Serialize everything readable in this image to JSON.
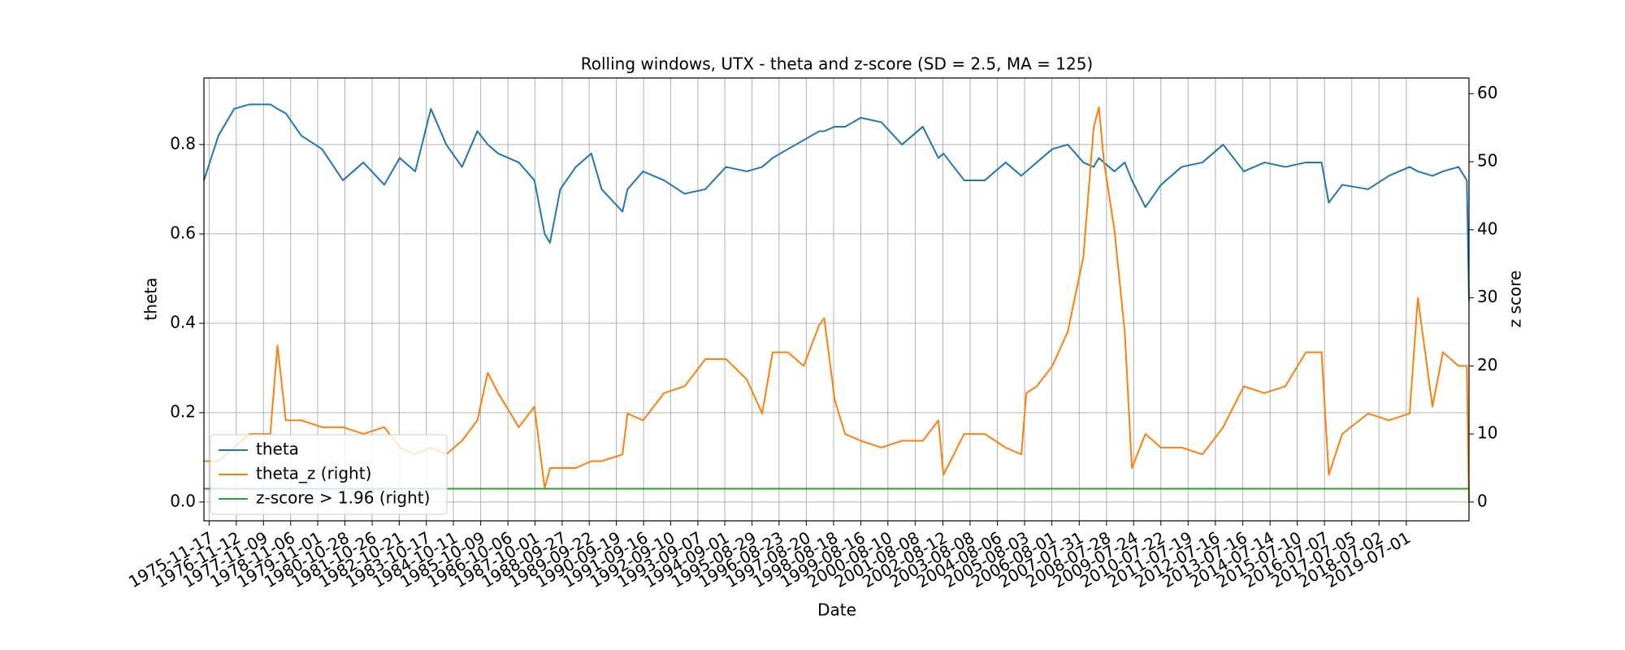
{
  "chart_data": {
    "type": "line",
    "title": "Rolling windows, UTX - theta and z-score (SD = 2.5, MA = 125)",
    "x_label": "Date",
    "y_label": "theta",
    "y2_label": "z score",
    "x": [
      "1975-09-09",
      "1976-03-20",
      "1976-10-15",
      "1977-05-08",
      "1978-02-08",
      "1978-05-15",
      "1978-09-02",
      "1979-03-28",
      "1979-12-28",
      "1980-10-01",
      "1981-07-01",
      "1982-04-05",
      "1982-10-27",
      "1983-05-22",
      "1983-12-16",
      "1984-07-08",
      "1985-02-02",
      "1985-08-26",
      "1986-01-11",
      "1986-05-29",
      "1987-02-28",
      "1987-09-24",
      "1988-02-08",
      "1988-04-18",
      "1988-09-02",
      "1989-03-28",
      "1989-10-20",
      "1990-03-07",
      "1990-12-09",
      "1991-02-14",
      "1991-09-09",
      "1992-06-13",
      "1993-03-14",
      "1993-12-16",
      "1994-09-16",
      "1995-06-21",
      "1996-01-11",
      "1996-05-29",
      "1996-12-20",
      "1997-07-16",
      "1998-02-08",
      "1998-04-16",
      "1998-09-02",
      "1999-01-19",
      "1999-08-14",
      "2000-05-15",
      "2001-02-14",
      "2001-11-17",
      "2002-06-13",
      "2002-08-19",
      "2003-05-22",
      "2004-02-20",
      "2004-11-24",
      "2005-06-21",
      "2005-08-26",
      "2006-01-11",
      "2006-08-08",
      "2007-02-28",
      "2007-09-24",
      "2008-02-08",
      "2008-04-18",
      "2008-06-24",
      "2008-11-10",
      "2009-03-28",
      "2009-07-01",
      "2009-12-28",
      "2010-07-23",
      "2011-04-23",
      "2012-01-26",
      "2012-10-27",
      "2013-07-30",
      "2014-05-01",
      "2015-02-02",
      "2015-11-03",
      "2016-05-29",
      "2016-09-02",
      "2017-02-28",
      "2018-02-08",
      "2018-11-10",
      "2019-08-14",
      "2019-12-01",
      "2020-06-13",
      "2020-10-30",
      "2021-05-26",
      "2021-09-13",
      "2021-10-12"
    ],
    "series": [
      {
        "name": "theta",
        "color": "#1f77b4",
        "values": [
          0.72,
          0.82,
          0.88,
          0.89,
          0.89,
          0.88,
          0.87,
          0.82,
          0.79,
          0.72,
          0.76,
          0.71,
          0.77,
          0.74,
          0.88,
          0.8,
          0.75,
          0.83,
          0.8,
          0.78,
          0.76,
          0.72,
          0.6,
          0.58,
          0.7,
          0.75,
          0.78,
          0.7,
          0.65,
          0.7,
          0.74,
          0.72,
          0.69,
          0.7,
          0.75,
          0.74,
          0.75,
          0.77,
          0.79,
          0.81,
          0.83,
          0.83,
          0.84,
          0.84,
          0.86,
          0.85,
          0.8,
          0.84,
          0.77,
          0.78,
          0.72,
          0.72,
          0.76,
          0.73,
          0.74,
          0.76,
          0.79,
          0.8,
          0.76,
          0.75,
          0.77,
          0.76,
          0.74,
          0.76,
          0.72,
          0.66,
          0.71,
          0.75,
          0.76,
          0.8,
          0.74,
          0.76,
          0.75,
          0.76,
          0.76,
          0.67,
          0.71,
          0.7,
          0.73,
          0.75,
          0.74,
          0.73,
          0.74,
          0.75,
          0.72,
          0.45
        ]
      },
      {
        "name": "theta_z (right)",
        "color": "#ff7f0e",
        "axis": "y2",
        "values": [
          6,
          6,
          8,
          10,
          10,
          23,
          12,
          12,
          11,
          11,
          10,
          11,
          8,
          7,
          8,
          7,
          9,
          12,
          19,
          16,
          11,
          14,
          2,
          5,
          5,
          5,
          6,
          6,
          7,
          13,
          12,
          16,
          17,
          21,
          21,
          18,
          13,
          22,
          22,
          20,
          26,
          27,
          15,
          10,
          9,
          8,
          9,
          9,
          12,
          4,
          10,
          10,
          8,
          7,
          16,
          17,
          20,
          25,
          36,
          55,
          58,
          50,
          40,
          25,
          5,
          10,
          8,
          8,
          7,
          11,
          17,
          16,
          17,
          22,
          22,
          4,
          10,
          13,
          12,
          13,
          30,
          14,
          22,
          20,
          20,
          0
        ]
      },
      {
        "name": "z-score > 1.96 (right)",
        "color": "#2ca02c",
        "axis": "y2",
        "values": [
          1.96,
          1.96,
          1.96,
          1.96,
          1.96,
          1.96,
          1.96,
          1.96,
          1.96,
          1.96,
          1.96,
          1.96,
          1.96,
          1.96,
          1.96,
          1.96,
          1.96,
          1.96,
          1.96,
          1.96,
          1.96,
          1.96,
          1.96,
          1.96,
          1.96,
          1.96,
          1.96,
          1.96,
          1.96,
          1.96,
          1.96,
          1.96,
          1.96,
          1.96,
          1.96,
          1.96,
          1.96,
          1.96,
          1.96,
          1.96,
          1.96,
          1.96,
          1.96,
          1.96,
          1.96,
          1.96,
          1.96,
          1.96,
          1.96,
          1.96,
          1.96,
          1.96,
          1.96,
          1.96,
          1.96,
          1.96,
          1.96,
          1.96,
          1.96,
          1.96,
          1.96,
          1.96,
          1.96,
          1.96,
          1.96,
          1.96,
          1.96,
          1.96,
          1.96,
          1.96,
          1.96,
          1.96,
          1.96,
          1.96,
          1.96,
          1.96,
          1.96,
          1.96,
          1.96,
          1.96,
          1.96,
          1.96,
          1.96,
          1.96,
          1.96,
          1.96
        ]
      }
    ],
    "xlim": [
      "1975-09-09",
      "2021-10-12"
    ],
    "xticks": [
      "1975-11-17",
      "1976-11-12",
      "1977-11-09",
      "1978-11-06",
      "1979-11-01",
      "1980-10-28",
      "1981-10-26",
      "1982-10-21",
      "1983-10-17",
      "1984-10-11",
      "1985-10-09",
      "1986-10-06",
      "1987-10-01",
      "1988-09-27",
      "1989-09-22",
      "1990-09-19",
      "1991-09-16",
      "1992-09-10",
      "1993-09-07",
      "1994-09-01",
      "1995-08-29",
      "1996-08-23",
      "1997-08-20",
      "1998-08-18",
      "1999-08-16",
      "2000-08-10",
      "2001-08-08",
      "2002-08-12",
      "2003-08-08",
      "2004-08-06",
      "2005-08-03",
      "2006-08-01",
      "2007-07-31",
      "2008-07-28",
      "2009-07-24",
      "2010-07-22",
      "2011-07-19",
      "2012-07-16",
      "2013-07-16",
      "2014-07-14",
      "2015-07-10",
      "2016-07-07",
      "2017-07-05",
      "2018-07-02",
      "2019-07-01"
    ],
    "ylim": [
      -0.042,
      0.949
    ],
    "yticks": [
      {
        "value": 0,
        "label": "0.0"
      },
      0.2,
      0.4,
      0.6,
      0.8
    ],
    "y2lim": [
      -2.76,
      62.3
    ],
    "y2ticks": [
      0,
      10,
      20,
      30,
      40,
      50,
      60
    ],
    "grid": true,
    "legend": "lower left"
  }
}
